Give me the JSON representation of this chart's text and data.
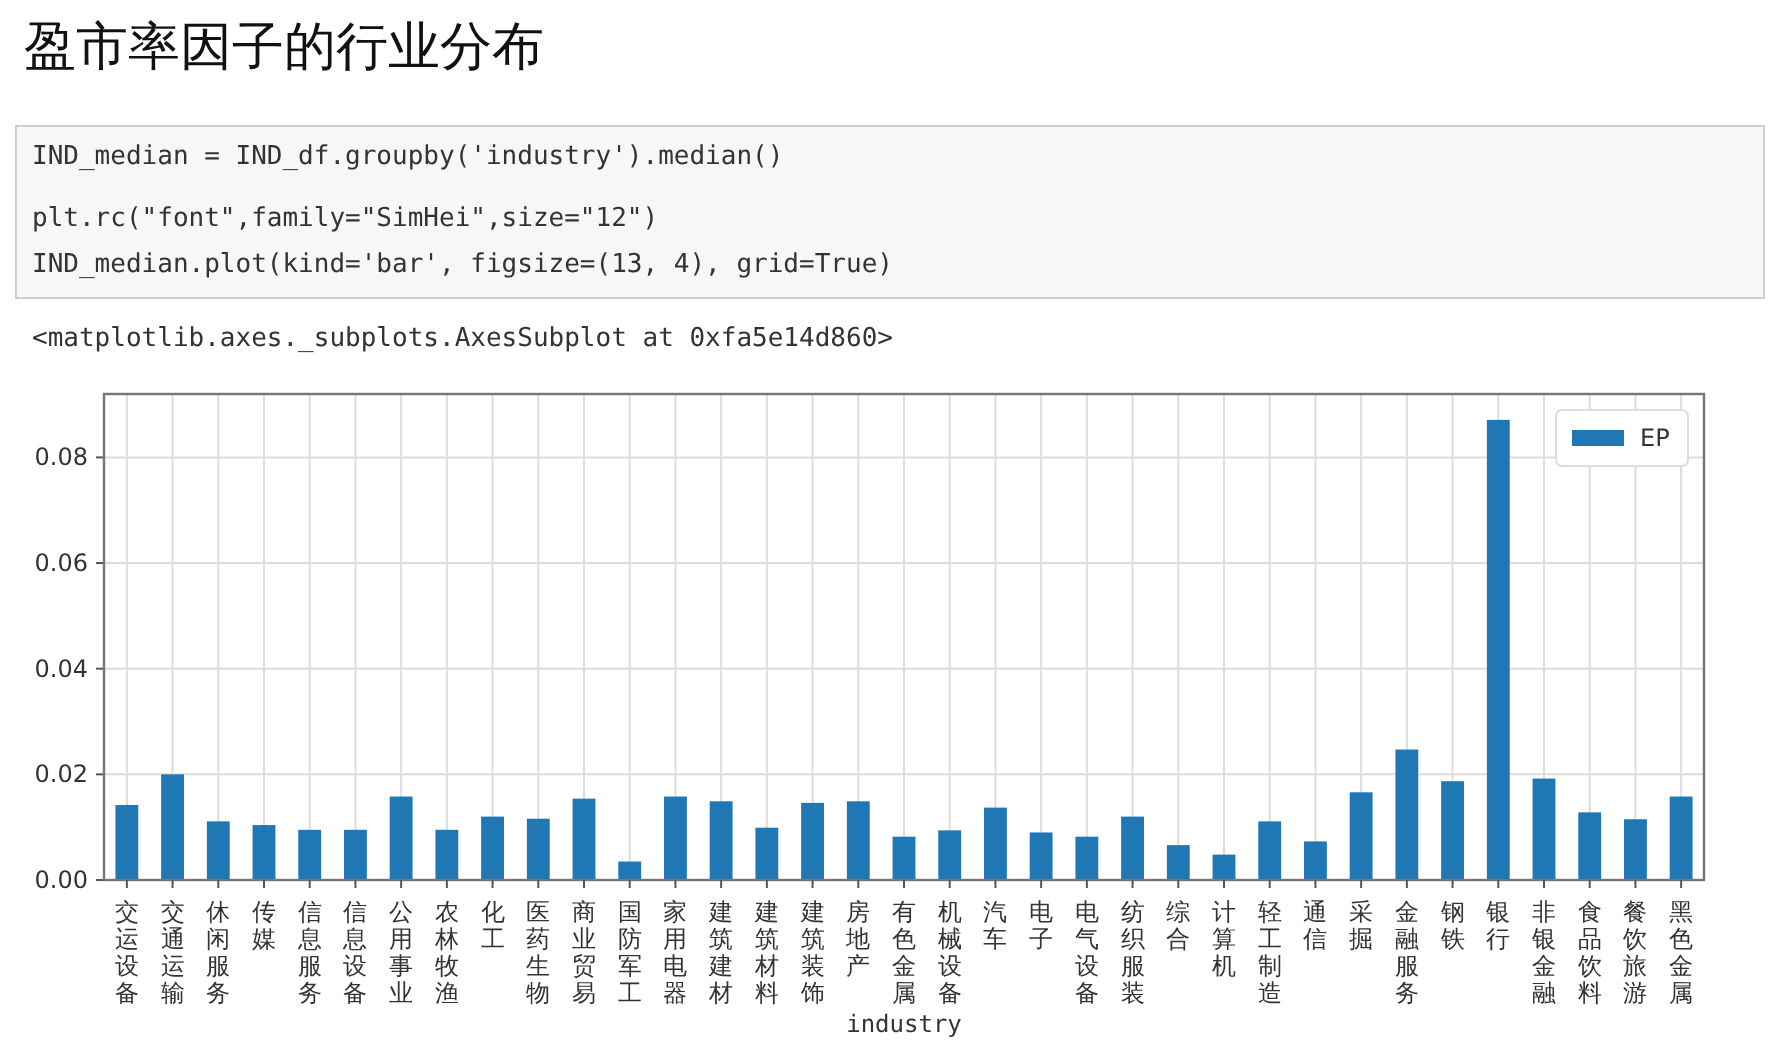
{
  "chart_data": {
    "type": "bar",
    "title": "盈市率因子的行业分布",
    "annotations": [
      "IND_median = IND_df.groupby('industry').median()",
      "plt.rc(\"font\",family=\"SimHei\",size=\"12\")",
      "IND_median.plot(kind='bar', figsize=(13, 4), grid=True)",
      "<matplotlib.axes._subplots.AxesSubplot at 0xfa5e14d860>"
    ],
    "xlabel": "industry",
    "categories": [
      "交运设备",
      "交通运输",
      "休闲服务",
      "传媒",
      "信息服务",
      "信息设备",
      "公用事业",
      "农林牧渔",
      "化工",
      "医药生物",
      "商业贸易",
      "国防军工",
      "家用电器",
      "建筑建材",
      "建筑材料",
      "建筑装饰",
      "房地产",
      "有色金属",
      "机械设备",
      "汽车",
      "电子",
      "电气设备",
      "纺织服装",
      "综合",
      "计算机",
      "轻工制造",
      "通信",
      "采掘",
      "金融服务",
      "钢铁",
      "银行",
      "非银金融",
      "食品饮料",
      "餐饮旅游",
      "黑色金属"
    ],
    "series": [
      {
        "name": "EP",
        "color": "#1f77b4",
        "values": [
          0.0142,
          0.02,
          0.0111,
          0.0104,
          0.0095,
          0.0095,
          0.0158,
          0.0095,
          0.012,
          0.0116,
          0.0154,
          0.0035,
          0.0158,
          0.0149,
          0.0099,
          0.0146,
          0.0149,
          0.0082,
          0.0094,
          0.0137,
          0.009,
          0.0082,
          0.012,
          0.0066,
          0.0048,
          0.0111,
          0.0073,
          0.0166,
          0.0247,
          0.0187,
          0.0871,
          0.0192,
          0.0128,
          0.0115,
          0.0158
        ]
      }
    ],
    "ylim": [
      0,
      0.092
    ],
    "yticks": [
      {
        "value": 0,
        "label": "0.00"
      },
      {
        "value": 0.02,
        "label": "0.02"
      },
      {
        "value": 0.04,
        "label": "0.04"
      },
      {
        "value": 0.06,
        "label": "0.06"
      },
      {
        "value": 0.08,
        "label": "0.08"
      }
    ],
    "grid": true,
    "legend": "top right"
  }
}
